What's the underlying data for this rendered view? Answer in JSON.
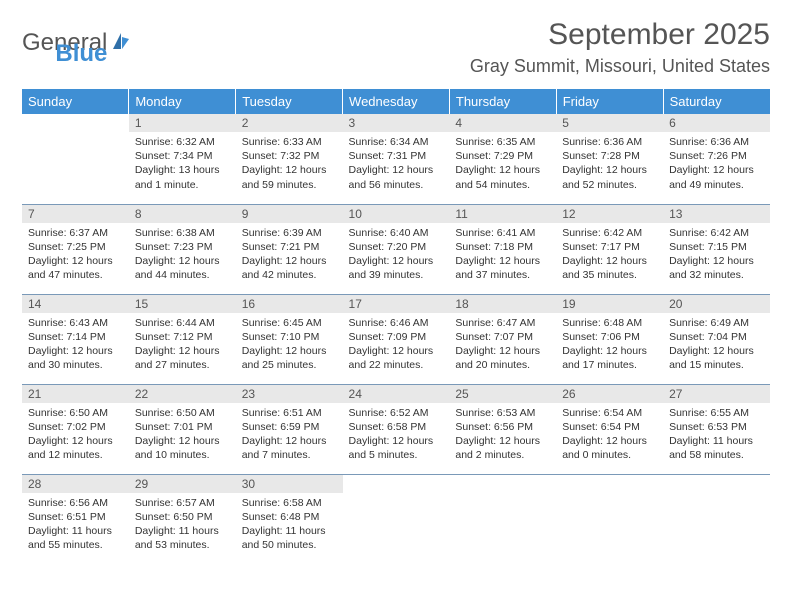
{
  "logo": {
    "word1": "General",
    "word2": "Blue"
  },
  "title": "September 2025",
  "location": "Gray Summit, Missouri, United States",
  "colors": {
    "header_bg": "#3f8fd4",
    "header_text": "#ffffff",
    "daynum_bg": "#e8e8e8",
    "border_color": "#7a99b8",
    "text": "#333333",
    "title_text": "#555555"
  },
  "layout": {
    "cols": 7,
    "rows": 5,
    "cell_font_size": 10.5,
    "header_font_size": 13
  },
  "weekdays": [
    "Sunday",
    "Monday",
    "Tuesday",
    "Wednesday",
    "Thursday",
    "Friday",
    "Saturday"
  ],
  "weeks": [
    [
      null,
      {
        "d": "1",
        "sr": "Sunrise: 6:32 AM",
        "ss": "Sunset: 7:34 PM",
        "dl": "Daylight: 13 hours and 1 minute."
      },
      {
        "d": "2",
        "sr": "Sunrise: 6:33 AM",
        "ss": "Sunset: 7:32 PM",
        "dl": "Daylight: 12 hours and 59 minutes."
      },
      {
        "d": "3",
        "sr": "Sunrise: 6:34 AM",
        "ss": "Sunset: 7:31 PM",
        "dl": "Daylight: 12 hours and 56 minutes."
      },
      {
        "d": "4",
        "sr": "Sunrise: 6:35 AM",
        "ss": "Sunset: 7:29 PM",
        "dl": "Daylight: 12 hours and 54 minutes."
      },
      {
        "d": "5",
        "sr": "Sunrise: 6:36 AM",
        "ss": "Sunset: 7:28 PM",
        "dl": "Daylight: 12 hours and 52 minutes."
      },
      {
        "d": "6",
        "sr": "Sunrise: 6:36 AM",
        "ss": "Sunset: 7:26 PM",
        "dl": "Daylight: 12 hours and 49 minutes."
      }
    ],
    [
      {
        "d": "7",
        "sr": "Sunrise: 6:37 AM",
        "ss": "Sunset: 7:25 PM",
        "dl": "Daylight: 12 hours and 47 minutes."
      },
      {
        "d": "8",
        "sr": "Sunrise: 6:38 AM",
        "ss": "Sunset: 7:23 PM",
        "dl": "Daylight: 12 hours and 44 minutes."
      },
      {
        "d": "9",
        "sr": "Sunrise: 6:39 AM",
        "ss": "Sunset: 7:21 PM",
        "dl": "Daylight: 12 hours and 42 minutes."
      },
      {
        "d": "10",
        "sr": "Sunrise: 6:40 AM",
        "ss": "Sunset: 7:20 PM",
        "dl": "Daylight: 12 hours and 39 minutes."
      },
      {
        "d": "11",
        "sr": "Sunrise: 6:41 AM",
        "ss": "Sunset: 7:18 PM",
        "dl": "Daylight: 12 hours and 37 minutes."
      },
      {
        "d": "12",
        "sr": "Sunrise: 6:42 AM",
        "ss": "Sunset: 7:17 PM",
        "dl": "Daylight: 12 hours and 35 minutes."
      },
      {
        "d": "13",
        "sr": "Sunrise: 6:42 AM",
        "ss": "Sunset: 7:15 PM",
        "dl": "Daylight: 12 hours and 32 minutes."
      }
    ],
    [
      {
        "d": "14",
        "sr": "Sunrise: 6:43 AM",
        "ss": "Sunset: 7:14 PM",
        "dl": "Daylight: 12 hours and 30 minutes."
      },
      {
        "d": "15",
        "sr": "Sunrise: 6:44 AM",
        "ss": "Sunset: 7:12 PM",
        "dl": "Daylight: 12 hours and 27 minutes."
      },
      {
        "d": "16",
        "sr": "Sunrise: 6:45 AM",
        "ss": "Sunset: 7:10 PM",
        "dl": "Daylight: 12 hours and 25 minutes."
      },
      {
        "d": "17",
        "sr": "Sunrise: 6:46 AM",
        "ss": "Sunset: 7:09 PM",
        "dl": "Daylight: 12 hours and 22 minutes."
      },
      {
        "d": "18",
        "sr": "Sunrise: 6:47 AM",
        "ss": "Sunset: 7:07 PM",
        "dl": "Daylight: 12 hours and 20 minutes."
      },
      {
        "d": "19",
        "sr": "Sunrise: 6:48 AM",
        "ss": "Sunset: 7:06 PM",
        "dl": "Daylight: 12 hours and 17 minutes."
      },
      {
        "d": "20",
        "sr": "Sunrise: 6:49 AM",
        "ss": "Sunset: 7:04 PM",
        "dl": "Daylight: 12 hours and 15 minutes."
      }
    ],
    [
      {
        "d": "21",
        "sr": "Sunrise: 6:50 AM",
        "ss": "Sunset: 7:02 PM",
        "dl": "Daylight: 12 hours and 12 minutes."
      },
      {
        "d": "22",
        "sr": "Sunrise: 6:50 AM",
        "ss": "Sunset: 7:01 PM",
        "dl": "Daylight: 12 hours and 10 minutes."
      },
      {
        "d": "23",
        "sr": "Sunrise: 6:51 AM",
        "ss": "Sunset: 6:59 PM",
        "dl": "Daylight: 12 hours and 7 minutes."
      },
      {
        "d": "24",
        "sr": "Sunrise: 6:52 AM",
        "ss": "Sunset: 6:58 PM",
        "dl": "Daylight: 12 hours and 5 minutes."
      },
      {
        "d": "25",
        "sr": "Sunrise: 6:53 AM",
        "ss": "Sunset: 6:56 PM",
        "dl": "Daylight: 12 hours and 2 minutes."
      },
      {
        "d": "26",
        "sr": "Sunrise: 6:54 AM",
        "ss": "Sunset: 6:54 PM",
        "dl": "Daylight: 12 hours and 0 minutes."
      },
      {
        "d": "27",
        "sr": "Sunrise: 6:55 AM",
        "ss": "Sunset: 6:53 PM",
        "dl": "Daylight: 11 hours and 58 minutes."
      }
    ],
    [
      {
        "d": "28",
        "sr": "Sunrise: 6:56 AM",
        "ss": "Sunset: 6:51 PM",
        "dl": "Daylight: 11 hours and 55 minutes."
      },
      {
        "d": "29",
        "sr": "Sunrise: 6:57 AM",
        "ss": "Sunset: 6:50 PM",
        "dl": "Daylight: 11 hours and 53 minutes."
      },
      {
        "d": "30",
        "sr": "Sunrise: 6:58 AM",
        "ss": "Sunset: 6:48 PM",
        "dl": "Daylight: 11 hours and 50 minutes."
      },
      null,
      null,
      null,
      null
    ]
  ]
}
